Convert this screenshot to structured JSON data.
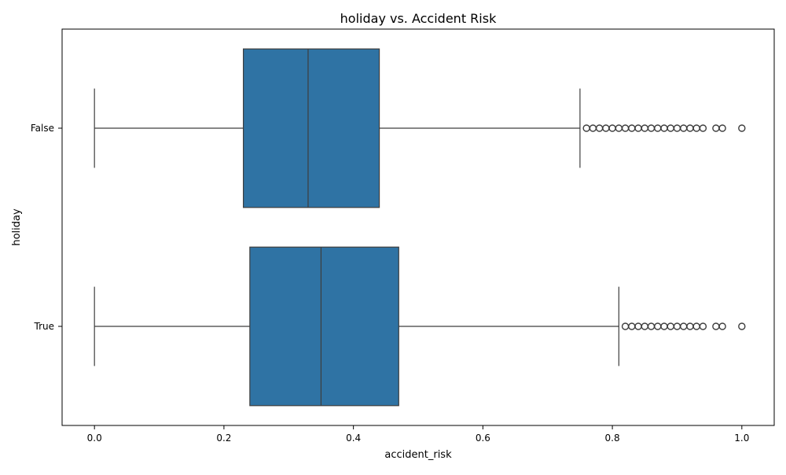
{
  "chart_data": {
    "type": "boxplot",
    "title": "holiday vs. Accident Risk",
    "xlabel": "accident_risk",
    "ylabel": "holiday",
    "xlim": [
      -0.05,
      1.05
    ],
    "xticks": [
      0.0,
      0.2,
      0.4,
      0.6,
      0.8,
      1.0
    ],
    "xtick_labels": [
      "0.0",
      "0.2",
      "0.4",
      "0.6",
      "0.8",
      "1.0"
    ],
    "categories": [
      "False",
      "True"
    ],
    "box_color": "#2f73a4",
    "line_color": "#3d3d3d",
    "series": [
      {
        "category": "False",
        "whisker_low": 0.0,
        "q1": 0.23,
        "median": 0.33,
        "q3": 0.44,
        "whisker_high": 0.75,
        "outliers": [
          0.76,
          0.77,
          0.78,
          0.79,
          0.8,
          0.81,
          0.82,
          0.83,
          0.84,
          0.85,
          0.86,
          0.87,
          0.88,
          0.89,
          0.9,
          0.91,
          0.92,
          0.93,
          0.94,
          0.96,
          0.97,
          1.0
        ]
      },
      {
        "category": "True",
        "whisker_low": 0.0,
        "q1": 0.24,
        "median": 0.35,
        "q3": 0.47,
        "whisker_high": 0.81,
        "outliers": [
          0.82,
          0.83,
          0.84,
          0.85,
          0.86,
          0.87,
          0.88,
          0.89,
          0.9,
          0.91,
          0.92,
          0.93,
          0.94,
          0.96,
          0.97,
          1.0
        ]
      }
    ]
  }
}
